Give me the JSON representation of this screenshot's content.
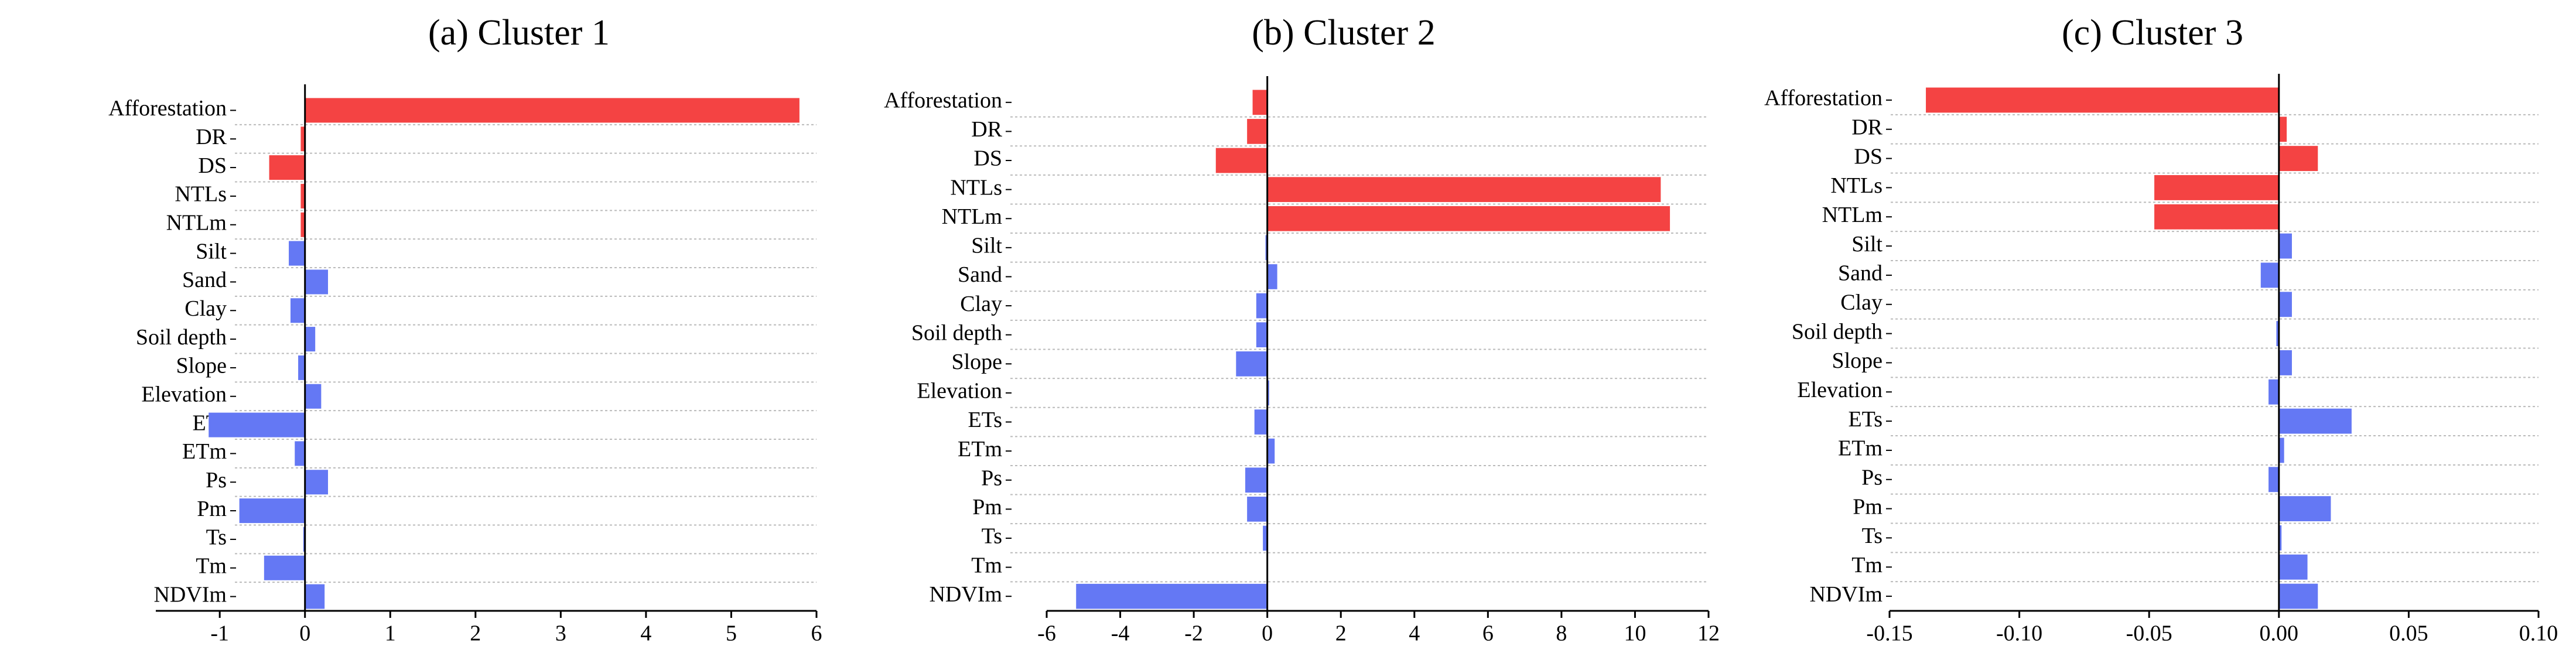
{
  "chart_data": [
    {
      "type": "barh",
      "title": "(a) Cluster 1",
      "categories": [
        "Afforestation",
        "DR",
        "DS",
        "NTLs",
        "NTLm",
        "Silt",
        "Sand",
        "Clay",
        "Soil depth",
        "Slope",
        "Elevation",
        "ETs",
        "ETm",
        "Ps",
        "Pm",
        "Ts",
        "Tm",
        "NDVIm"
      ],
      "values": [
        5.8,
        -0.05,
        -0.42,
        -0.05,
        -0.05,
        -0.19,
        0.27,
        -0.17,
        0.12,
        -0.08,
        0.19,
        -1.13,
        -0.12,
        0.27,
        -0.77,
        -0.02,
        -0.48,
        0.23
      ],
      "colors": [
        "#f44343",
        "#f44343",
        "#f44343",
        "#f44343",
        "#f44343",
        "#6478f4",
        "#6478f4",
        "#6478f4",
        "#6478f4",
        "#6478f4",
        "#6478f4",
        "#6478f4",
        "#6478f4",
        "#6478f4",
        "#6478f4",
        "#6478f4",
        "#6478f4",
        "#6478f4"
      ],
      "xlim": [
        -1.75,
        6
      ],
      "xticks": [
        -1,
        0,
        1,
        2,
        3,
        4,
        5,
        6
      ],
      "grid": true
    },
    {
      "type": "barh",
      "title": "(b)  Cluster 2",
      "categories": [
        "Afforestation",
        "DR",
        "DS",
        "NTLs",
        "NTLm",
        "Silt",
        "Sand",
        "Clay",
        "Soil depth",
        "Slope",
        "Elevation",
        "ETs",
        "ETm",
        "Ps",
        "Pm",
        "Ts",
        "Tm",
        "NDVIm"
      ],
      "values": [
        -0.4,
        -0.55,
        -1.4,
        10.7,
        10.95,
        -0.05,
        0.27,
        -0.3,
        -0.3,
        -0.85,
        0.05,
        -0.35,
        0.2,
        -0.6,
        -0.55,
        -0.12,
        0,
        -5.2
      ],
      "colors": [
        "#f44343",
        "#f44343",
        "#f44343",
        "#f44343",
        "#f44343",
        "#6478f4",
        "#6478f4",
        "#6478f4",
        "#6478f4",
        "#6478f4",
        "#6478f4",
        "#6478f4",
        "#6478f4",
        "#6478f4",
        "#6478f4",
        "#6478f4",
        "#6478f4",
        "#6478f4"
      ],
      "xlim": [
        -6,
        12
      ],
      "xticks": [
        -6,
        -4,
        -2,
        0,
        2,
        4,
        6,
        8,
        10,
        12
      ],
      "grid": true
    },
    {
      "type": "barh",
      "title": "(c) Cluster 3",
      "categories": [
        "Afforestation",
        "DR",
        "DS",
        "NTLs",
        "NTLm",
        "Silt",
        "Sand",
        "Clay",
        "Soil depth",
        "Slope",
        "Elevation",
        "ETs",
        "ETm",
        "Ps",
        "Pm",
        "Ts",
        "Tm",
        "NDVIm"
      ],
      "values": [
        -0.136,
        0.003,
        0.015,
        -0.048,
        -0.048,
        0.005,
        -0.007,
        0.005,
        -0.001,
        0.005,
        -0.004,
        0.028,
        0.002,
        -0.004,
        0.02,
        0.001,
        0.011,
        0.015
      ],
      "colors": [
        "#f44343",
        "#f44343",
        "#f44343",
        "#f44343",
        "#f44343",
        "#6478f4",
        "#6478f4",
        "#6478f4",
        "#6478f4",
        "#6478f4",
        "#6478f4",
        "#6478f4",
        "#6478f4",
        "#6478f4",
        "#6478f4",
        "#6478f4",
        "#6478f4",
        "#6478f4"
      ],
      "xlim": [
        -0.15,
        0.1
      ],
      "xticks": [
        -0.15,
        {
          "value": -0.1,
          "label": "-0.10"
        },
        -0.05,
        {
          "value": 0,
          "label": "0.00"
        },
        0.05,
        {
          "value": 0.1,
          "label": "0.10"
        }
      ],
      "grid": true
    }
  ]
}
